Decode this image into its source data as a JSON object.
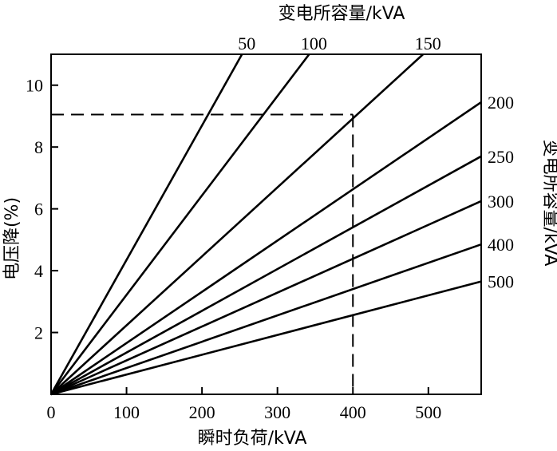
{
  "chart_data": {
    "type": "line",
    "top_title": "变电所容量/kVA",
    "right_title": "变电所容量/kVA",
    "xlabel": "瞬时负荷/kVA",
    "ylabel": "电压降(%)",
    "xlim": [
      0,
      570
    ],
    "ylim": [
      0,
      11
    ],
    "x_ticks": [
      0,
      100,
      200,
      300,
      400,
      500
    ],
    "x_tick_labels": [
      "0",
      "100",
      "200",
      "300",
      "400",
      "500"
    ],
    "y_ticks": [
      2,
      4,
      6,
      8,
      10
    ],
    "y_tick_labels": [
      "2",
      "4",
      "6",
      "8",
      "10"
    ],
    "grid": false,
    "series": [
      {
        "name": "50",
        "x": [
          0,
          253
        ],
        "y": [
          0,
          11.0
        ]
      },
      {
        "name": "100",
        "x": [
          0,
          342
        ],
        "y": [
          0,
          11.0
        ]
      },
      {
        "name": "150",
        "x": [
          0,
          493
        ],
        "y": [
          0,
          11.0
        ]
      },
      {
        "name": "200",
        "x": [
          0,
          570
        ],
        "y": [
          0,
          9.45
        ]
      },
      {
        "name": "250",
        "x": [
          0,
          570
        ],
        "y": [
          0,
          7.7
        ]
      },
      {
        "name": "300",
        "x": [
          0,
          570
        ],
        "y": [
          0,
          6.25
        ]
      },
      {
        "name": "400",
        "x": [
          0,
          570
        ],
        "y": [
          0,
          4.85
        ]
      },
      {
        "name": "500",
        "x": [
          0,
          570
        ],
        "y": [
          0,
          3.65
        ]
      }
    ],
    "reference_line": {
      "x": 400,
      "y": 9.05
    }
  }
}
